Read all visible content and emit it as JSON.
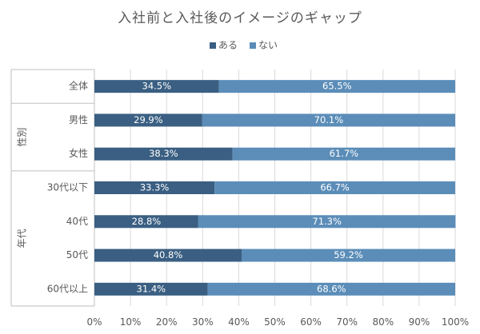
{
  "chart_data": {
    "type": "bar",
    "orientation": "horizontal",
    "stacked": "percent",
    "title": "入社前と入社後のイメージのギャップ",
    "legend": {
      "position": "top",
      "entries": [
        "ある",
        "ない"
      ]
    },
    "colors": {
      "ある": "#3a5f82",
      "ない": "#5b8db8"
    },
    "groups": [
      {
        "label": "",
        "categories": [
          "全体"
        ]
      },
      {
        "label": "性別",
        "categories": [
          "男性",
          "女性"
        ]
      },
      {
        "label": "年代",
        "categories": [
          "30代以下",
          "40代",
          "50代",
          "60代以上"
        ]
      }
    ],
    "categories": [
      "全体",
      "男性",
      "女性",
      "30代以下",
      "40代",
      "50代",
      "60代以上"
    ],
    "series": [
      {
        "name": "ある",
        "values": [
          34.5,
          29.9,
          38.3,
          33.3,
          28.8,
          40.8,
          31.4
        ],
        "labels": [
          "34.5%",
          "29.9%",
          "38.3%",
          "33.3%",
          "28.8%",
          "40.8%",
          "31.4%"
        ]
      },
      {
        "name": "ない",
        "values": [
          65.5,
          70.1,
          61.7,
          66.7,
          71.3,
          59.2,
          68.6
        ],
        "labels": [
          "65.5%",
          "70.1%",
          "61.7%",
          "66.7%",
          "71.3%",
          "59.2%",
          "68.6%"
        ]
      }
    ],
    "xlim": [
      0,
      100
    ],
    "xticks": [
      "0%",
      "10%",
      "20%",
      "30%",
      "40%",
      "50%",
      "60%",
      "70%",
      "80%",
      "90%",
      "100%"
    ],
    "grid": true
  }
}
